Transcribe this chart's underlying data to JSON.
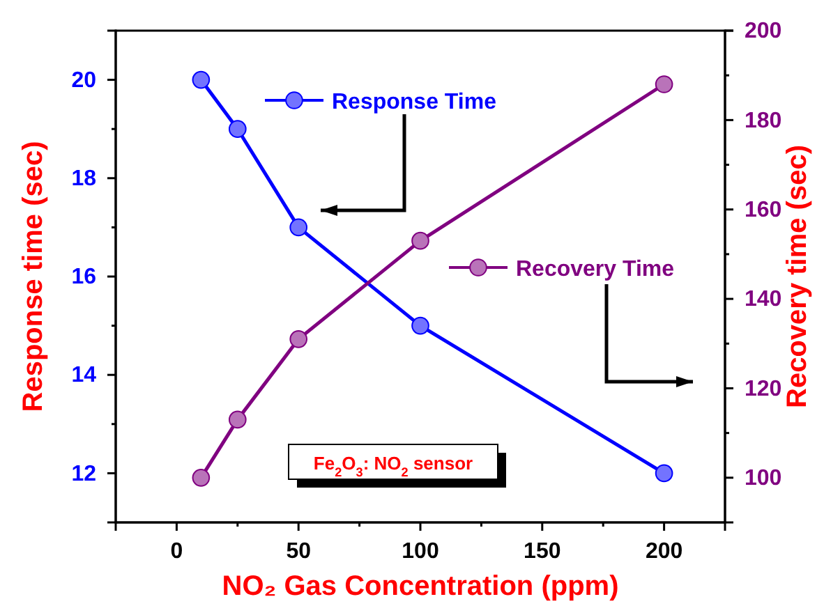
{
  "chart_data": {
    "type": "line",
    "xlabel": "NO₂ Gas Concentration (ppm)",
    "ylabel": "Response time (sec)",
    "y2label": "Recovery time (sec)",
    "x": [
      10,
      25,
      50,
      100,
      200
    ],
    "series": [
      {
        "name": "Response Time",
        "color": "#0000ff",
        "values": [
          20,
          19,
          17,
          15,
          12
        ]
      },
      {
        "name": "Recovery Time",
        "color": "#800080",
        "axis": "y2",
        "values": [
          100,
          113,
          131,
          153,
          188
        ]
      }
    ],
    "xlim": [
      -25,
      225
    ],
    "xticks": [
      0,
      {
        "value": 25,
        "label": null
      },
      50,
      {
        "value": 75,
        "label": null
      },
      100,
      {
        "value": 125,
        "label": null
      },
      150,
      {
        "value": 175,
        "label": null
      },
      200
    ],
    "ylim": [
      11,
      21
    ],
    "yticks": [
      12,
      {
        "value": 13,
        "label": null
      },
      14,
      {
        "value": 15,
        "label": null
      },
      16,
      {
        "value": 17,
        "label": null
      },
      18,
      {
        "value": 19,
        "label": null
      },
      20
    ],
    "y2lim": [
      90,
      200
    ],
    "y2ticks": [
      100,
      {
        "value": 110,
        "label": null
      },
      120,
      {
        "value": 130,
        "label": null
      },
      140,
      {
        "value": 150,
        "label": null
      },
      160,
      {
        "value": 170,
        "label": null
      },
      180,
      {
        "value": 190,
        "label": null
      },
      200
    ],
    "marker": "circle",
    "legend": "top right",
    "grid": false,
    "annotations": [
      "Fe$_{2}$O$_{3}$: NO$_{2}$ sensor"
    ]
  }
}
